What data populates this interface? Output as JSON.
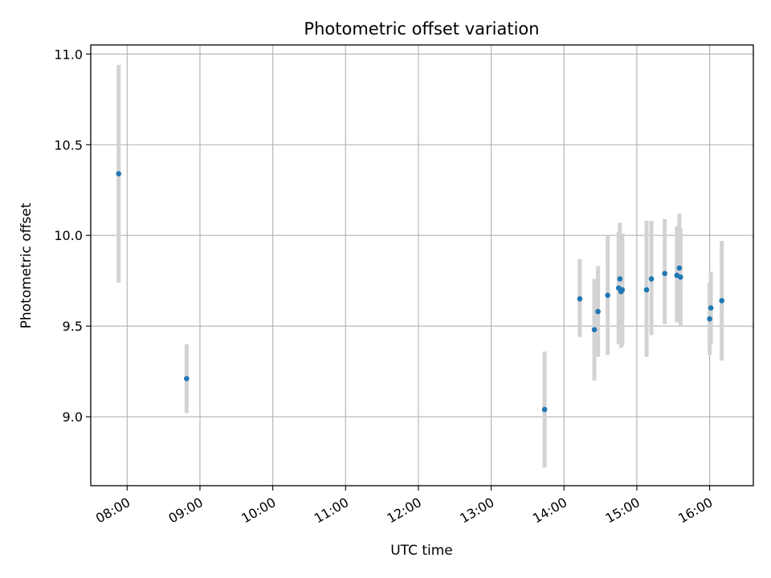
{
  "chart_data": {
    "type": "scatter",
    "title": "Photometric offset variation",
    "xlabel": "UTC time",
    "ylabel": "Photometric offset",
    "x_unit": "UTC hours:minutes",
    "xlim": [
      "07:30",
      "16:36"
    ],
    "ylim": [
      8.62,
      11.05
    ],
    "x_ticks": [
      "08:00",
      "09:00",
      "10:00",
      "11:00",
      "12:00",
      "13:00",
      "14:00",
      "15:00",
      "16:00"
    ],
    "y_ticks": [
      "9.0",
      "9.5",
      "10.0",
      "10.5",
      "11.0"
    ],
    "grid": true,
    "legend": "none",
    "colors": {
      "point": "#1f77b4",
      "errorbar": "#d3d3d3",
      "grid": "#b0b0b0",
      "axes": "#000000"
    },
    "series": [
      {
        "points": [
          {
            "x": "07:53",
            "y": 10.34,
            "yerr_low": 9.74,
            "yerr_high": 10.94
          },
          {
            "x": "08:49",
            "y": 9.21,
            "yerr_low": 9.02,
            "yerr_high": 9.4
          },
          {
            "x": "13:44",
            "y": 9.04,
            "yerr_low": 8.72,
            "yerr_high": 9.36
          },
          {
            "x": "14:13",
            "y": 9.65,
            "yerr_low": 9.44,
            "yerr_high": 9.87
          },
          {
            "x": "14:25",
            "y": 9.48,
            "yerr_low": 9.2,
            "yerr_high": 9.76
          },
          {
            "x": "14:28",
            "y": 9.58,
            "yerr_low": 9.33,
            "yerr_high": 9.83
          },
          {
            "x": "14:36",
            "y": 9.67,
            "yerr_low": 9.34,
            "yerr_high": 10.0
          },
          {
            "x": "14:45",
            "y": 9.71,
            "yerr_low": 9.4,
            "yerr_high": 10.02
          },
          {
            "x": "14:46",
            "y": 9.76,
            "yerr_low": 9.45,
            "yerr_high": 10.07
          },
          {
            "x": "14:47",
            "y": 9.69,
            "yerr_low": 9.38,
            "yerr_high": 10.0
          },
          {
            "x": "14:48",
            "y": 9.7,
            "yerr_low": 9.39,
            "yerr_high": 10.01
          },
          {
            "x": "15:08",
            "y": 9.7,
            "yerr_low": 9.33,
            "yerr_high": 10.08
          },
          {
            "x": "15:12",
            "y": 9.76,
            "yerr_low": 9.45,
            "yerr_high": 10.08
          },
          {
            "x": "15:23",
            "y": 9.79,
            "yerr_low": 9.51,
            "yerr_high": 10.09
          },
          {
            "x": "15:33",
            "y": 9.78,
            "yerr_low": 9.52,
            "yerr_high": 10.05
          },
          {
            "x": "15:35",
            "y": 9.82,
            "yerr_low": 9.52,
            "yerr_high": 10.12
          },
          {
            "x": "15:36",
            "y": 9.77,
            "yerr_low": 9.5,
            "yerr_high": 10.04
          },
          {
            "x": "16:00",
            "y": 9.54,
            "yerr_low": 9.34,
            "yerr_high": 9.74
          },
          {
            "x": "16:01",
            "y": 9.6,
            "yerr_low": 9.4,
            "yerr_high": 9.8
          },
          {
            "x": "16:10",
            "y": 9.64,
            "yerr_low": 9.31,
            "yerr_high": 9.97
          }
        ]
      }
    ]
  }
}
